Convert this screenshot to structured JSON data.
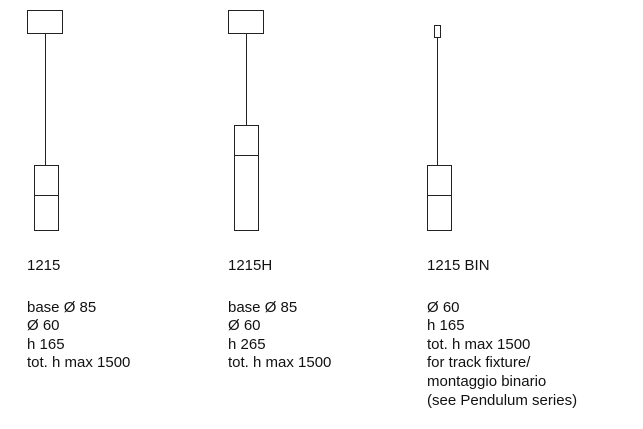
{
  "products": [
    {
      "name": "1215",
      "specs": [
        "base Ø 85",
        "Ø 60",
        "h 165",
        "tot. h max 1500"
      ]
    },
    {
      "name": "1215H",
      "specs": [
        "base Ø 85",
        "Ø 60",
        "h 265",
        "tot. h max 1500"
      ]
    },
    {
      "name": "1215 BIN",
      "specs": [
        "Ø 60",
        "h 165",
        "tot. h max 1500",
        "for track fixture/",
        "montaggio binario",
        "(see Pendulum series)"
      ]
    }
  ]
}
